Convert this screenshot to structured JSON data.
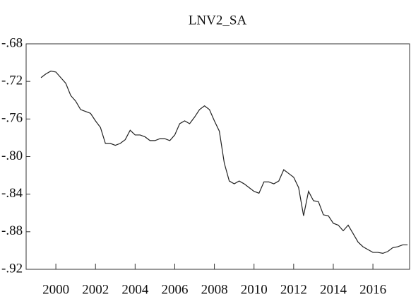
{
  "chart_data": {
    "type": "line",
    "title": "LNV2_SA",
    "x": [
      1999.25,
      1999.5,
      1999.75,
      2000,
      2000.25,
      2000.5,
      2000.75,
      2001,
      2001.25,
      2001.5,
      2001.75,
      2002,
      2002.25,
      2002.5,
      2002.75,
      2003,
      2003.25,
      2003.5,
      2003.75,
      2004,
      2004.25,
      2004.5,
      2004.75,
      2005,
      2005.25,
      2005.5,
      2005.75,
      2006,
      2006.25,
      2006.5,
      2006.75,
      2007,
      2007.25,
      2007.5,
      2007.75,
      2008,
      2008.25,
      2008.5,
      2008.75,
      2009,
      2009.25,
      2009.5,
      2009.75,
      2010,
      2010.25,
      2010.5,
      2010.75,
      2011,
      2011.25,
      2011.5,
      2011.75,
      2012,
      2012.25,
      2012.5,
      2012.75,
      2013,
      2013.25,
      2013.5,
      2013.75,
      2014,
      2014.25,
      2014.5,
      2014.75,
      2015,
      2015.25,
      2015.5,
      2015.75,
      2016,
      2016.25,
      2016.5,
      2016.75,
      2017,
      2017.25,
      2017.5,
      2017.75
    ],
    "series": [
      {
        "name": "LNV2_SA",
        "color": "#222222",
        "values": [
          -0.716,
          -0.712,
          -0.709,
          -0.71,
          -0.716,
          -0.722,
          -0.735,
          -0.741,
          -0.75,
          -0.752,
          -0.754,
          -0.762,
          -0.769,
          -0.786,
          -0.786,
          -0.788,
          -0.786,
          -0.782,
          -0.772,
          -0.777,
          -0.777,
          -0.779,
          -0.783,
          -0.783,
          -0.781,
          -0.781,
          -0.783,
          -0.777,
          -0.765,
          -0.762,
          -0.765,
          -0.758,
          -0.75,
          -0.746,
          -0.75,
          -0.762,
          -0.773,
          -0.807,
          -0.826,
          -0.829,
          -0.826,
          -0.829,
          -0.833,
          -0.837,
          -0.839,
          -0.827,
          -0.827,
          -0.829,
          -0.826,
          -0.814,
          -0.818,
          -0.822,
          -0.833,
          -0.863,
          -0.837,
          -0.847,
          -0.848,
          -0.862,
          -0.863,
          -0.871,
          -0.873,
          -0.879,
          -0.873,
          -0.882,
          -0.891,
          -0.896,
          -0.899,
          -0.902,
          -0.902,
          -0.903,
          -0.901,
          -0.897,
          -0.896,
          -0.894,
          -0.894
        ]
      }
    ],
    "xlim": [
      1998.5,
      2017.85
    ],
    "xticks": [
      2000,
      2002,
      2004,
      2006,
      2008,
      2010,
      2012,
      2014,
      2016
    ],
    "ylim": [
      -0.92,
      -0.68
    ],
    "yticks": [
      {
        "value": -0.92,
        "label": "-.92"
      },
      {
        "value": -0.88,
        "label": "-.88"
      },
      {
        "value": -0.84,
        "label": "-.84"
      },
      {
        "value": -0.8,
        "label": "-.80"
      },
      {
        "value": -0.76,
        "label": "-.76"
      },
      {
        "value": -0.72,
        "label": "-.72"
      },
      {
        "value": -0.68,
        "label": "-.68"
      }
    ]
  }
}
